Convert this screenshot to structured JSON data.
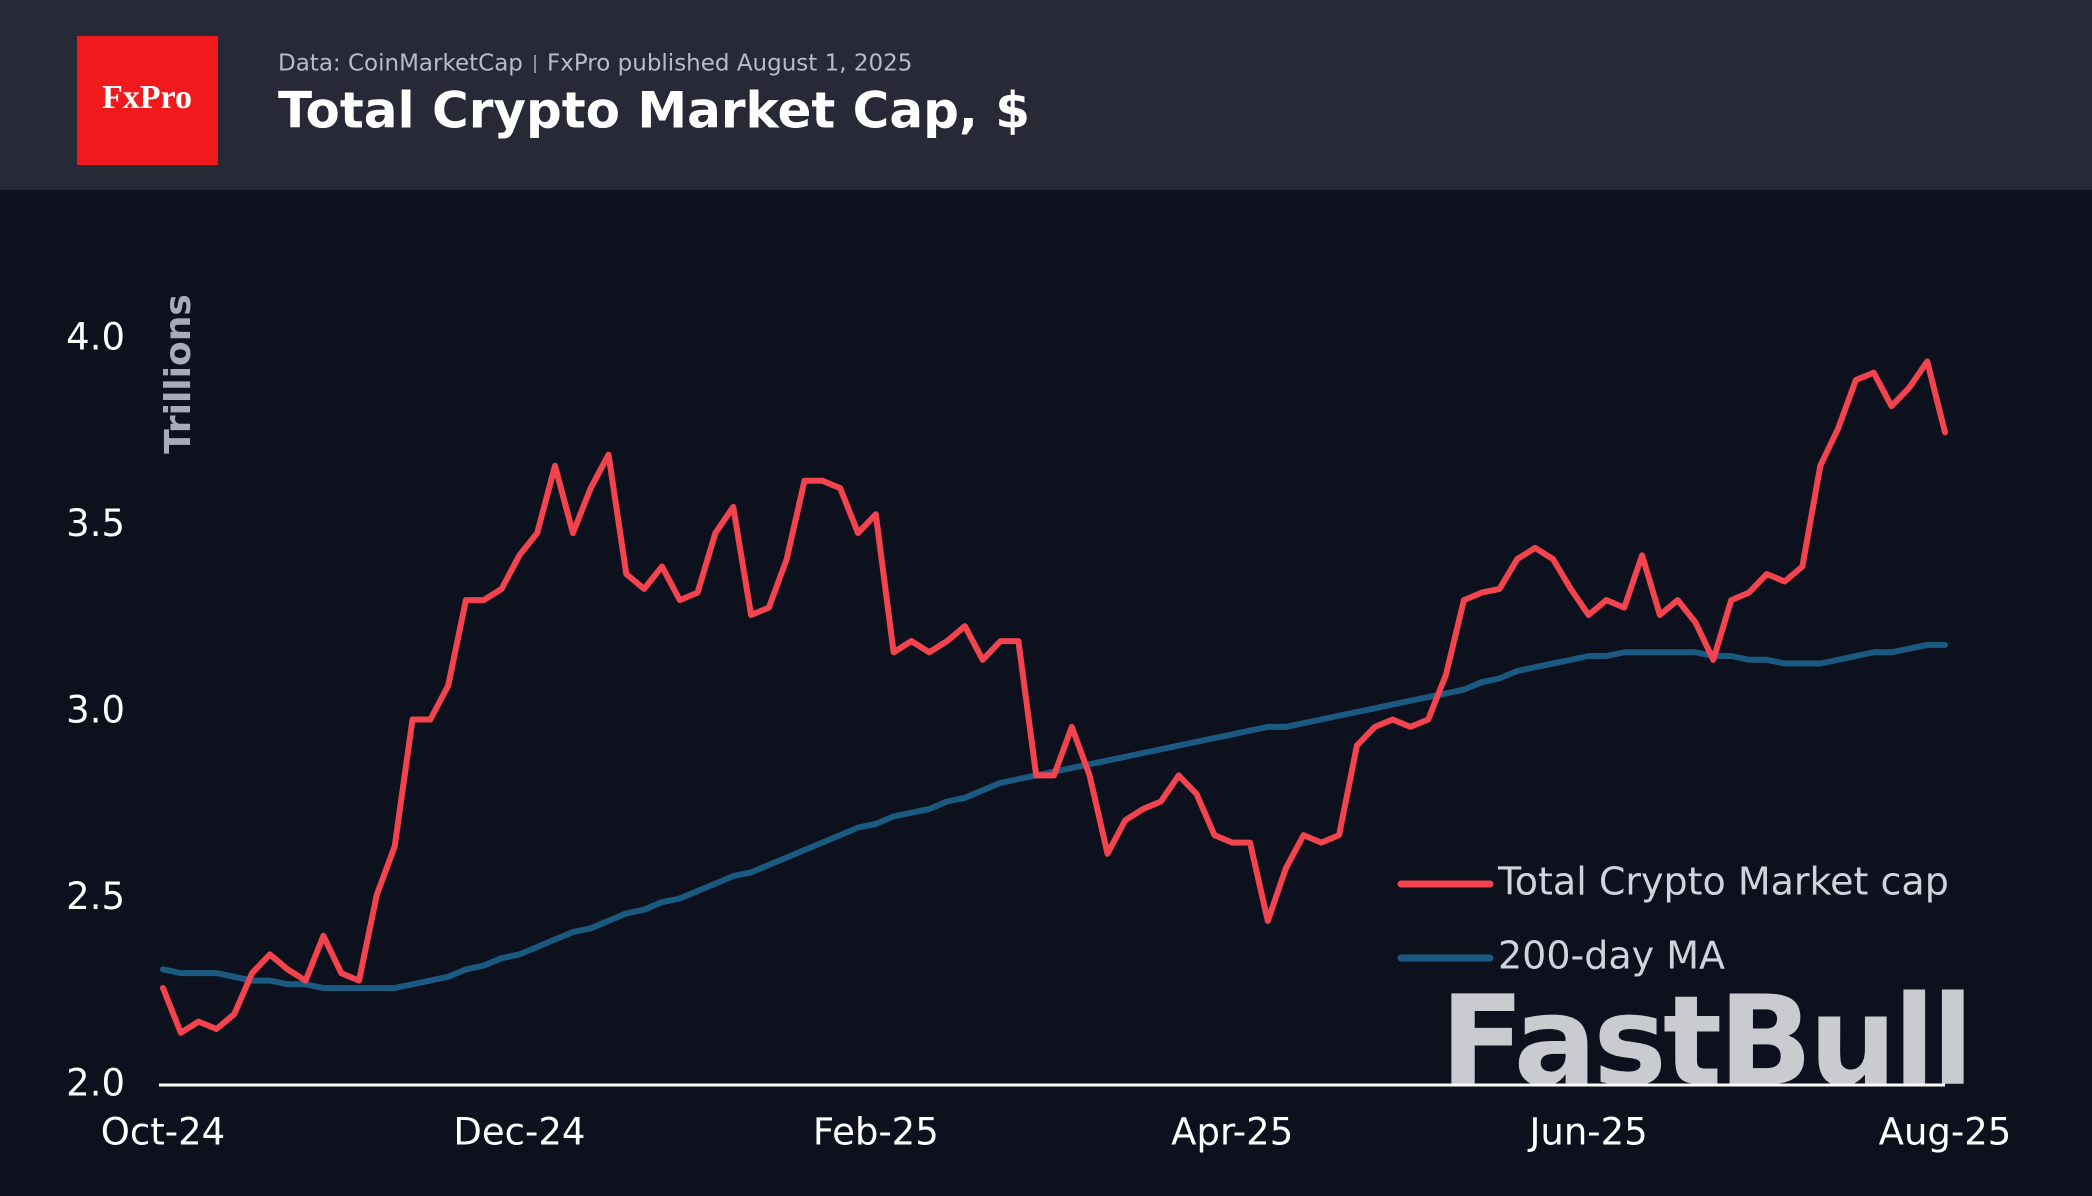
{
  "logo": "FxPro",
  "source": "Data: CoinMarketCap",
  "subtitle": "FxPro published August 1, 2025",
  "watermark": "FastBull",
  "chart_data": {
    "type": "line",
    "title": "Total Crypto Market Cap, $",
    "y_label": "Trillions",
    "categories": [
      "Oct-24",
      null,
      null,
      null,
      null,
      null,
      null,
      null,
      null,
      null,
      null,
      null,
      null,
      null,
      null,
      null,
      null,
      null,
      null,
      null,
      "Dec-24",
      null,
      null,
      null,
      null,
      null,
      null,
      null,
      null,
      null,
      null,
      null,
      null,
      null,
      null,
      null,
      null,
      null,
      null,
      null,
      "Feb-25",
      null,
      null,
      null,
      null,
      null,
      null,
      null,
      null,
      null,
      null,
      null,
      null,
      null,
      null,
      null,
      null,
      null,
      null,
      null,
      "Apr-25",
      null,
      null,
      null,
      null,
      null,
      null,
      null,
      null,
      null,
      null,
      null,
      null,
      null,
      null,
      null,
      null,
      null,
      null,
      null,
      "Jun-25",
      null,
      null,
      null,
      null,
      null,
      null,
      null,
      null,
      null,
      null,
      null,
      null,
      null,
      null,
      null,
      null,
      null,
      null,
      null,
      "Aug-25"
    ],
    "series": [
      {
        "name": "Total Crypto Market cap",
        "color": "#f2434e",
        "values": [
          2.26,
          2.14,
          2.17,
          2.15,
          2.19,
          2.3,
          2.35,
          2.31,
          2.28,
          2.4,
          2.3,
          2.28,
          2.51,
          2.64,
          2.98,
          2.98,
          3.07,
          3.3,
          3.3,
          3.33,
          3.42,
          3.48,
          3.66,
          3.48,
          3.6,
          3.69,
          3.37,
          3.33,
          3.39,
          3.3,
          3.32,
          3.48,
          3.55,
          3.26,
          3.28,
          3.41,
          3.62,
          3.62,
          3.6,
          3.48,
          3.53,
          3.16,
          3.19,
          3.16,
          3.19,
          3.23,
          3.14,
          3.19,
          3.19,
          2.83,
          2.83,
          2.96,
          2.83,
          2.62,
          2.71,
          2.74,
          2.76,
          2.83,
          2.78,
          2.67,
          2.65,
          2.65,
          2.44,
          2.58,
          2.67,
          2.65,
          2.67,
          2.91,
          2.96,
          2.98,
          2.96,
          2.98,
          3.1,
          3.3,
          3.32,
          3.33,
          3.41,
          3.44,
          3.41,
          3.33,
          3.26,
          3.3,
          3.28,
          3.42,
          3.26,
          3.3,
          3.24,
          3.14,
          3.3,
          3.32,
          3.37,
          3.35,
          3.39,
          3.66,
          3.76,
          3.89,
          3.91,
          3.82,
          3.87,
          3.94,
          3.75
        ]
      },
      {
        "name": "200-day MA",
        "color": "#1b5a80",
        "values": [
          2.31,
          2.3,
          2.3,
          2.3,
          2.29,
          2.28,
          2.28,
          2.27,
          2.27,
          2.26,
          2.26,
          2.26,
          2.26,
          2.26,
          2.27,
          2.28,
          2.29,
          2.31,
          2.32,
          2.34,
          2.35,
          2.37,
          2.39,
          2.41,
          2.42,
          2.44,
          2.46,
          2.47,
          2.49,
          2.5,
          2.52,
          2.54,
          2.56,
          2.57,
          2.59,
          2.61,
          2.63,
          2.65,
          2.67,
          2.69,
          2.7,
          2.72,
          2.73,
          2.74,
          2.76,
          2.77,
          2.79,
          2.81,
          2.82,
          2.83,
          2.84,
          2.85,
          2.86,
          2.87,
          2.88,
          2.89,
          2.9,
          2.91,
          2.92,
          2.93,
          2.94,
          2.95,
          2.96,
          2.96,
          2.97,
          2.98,
          2.99,
          3.0,
          3.01,
          3.02,
          3.03,
          3.04,
          3.05,
          3.06,
          3.08,
          3.09,
          3.11,
          3.12,
          3.13,
          3.14,
          3.15,
          3.15,
          3.16,
          3.16,
          3.16,
          3.16,
          3.16,
          3.15,
          3.15,
          3.14,
          3.14,
          3.13,
          3.13,
          3.13,
          3.14,
          3.15,
          3.16,
          3.16,
          3.17,
          3.18,
          3.18
        ]
      }
    ],
    "ylim": [
      2,
      4
    ],
    "yticks": [
      {
        "value": 2,
        "label": "2.0"
      },
      2.5,
      {
        "value": 3,
        "label": "3.0"
      },
      3.5,
      {
        "value": 4,
        "label": "4.0"
      }
    ],
    "legend": "lower right",
    "grid": false
  }
}
